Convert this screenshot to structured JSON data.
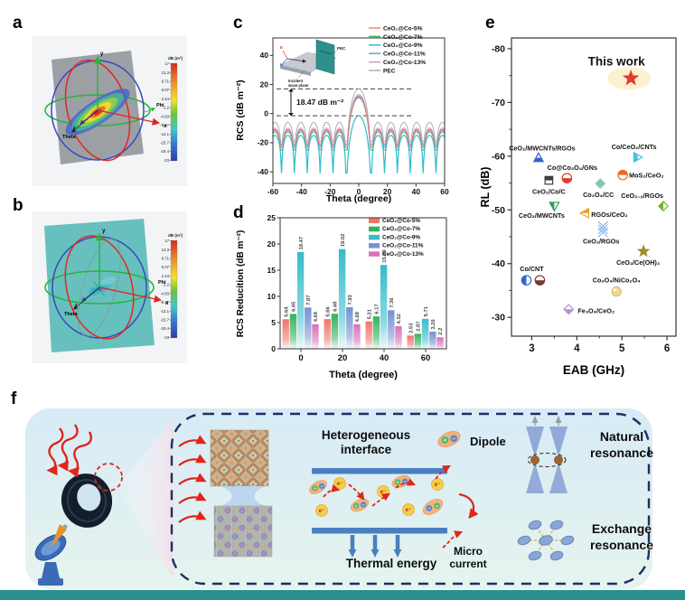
{
  "figure": {
    "panel_labels": {
      "a": "a",
      "b": "b",
      "c": "c",
      "d": "d",
      "e": "e",
      "f": "f"
    }
  },
  "colors": {
    "bottom_strip": "#2a8f8f",
    "schematic_border": "#1d2f63",
    "microwave_red": "#e0251c",
    "interface_bar_blue": "#4a7fc1"
  },
  "radiation_3d": {
    "colorbar_title": "dB (m²)",
    "colorbar_ticks": [
      "17",
      "13.3",
      "9.71",
      "6.07",
      "2.44",
      "-1.2",
      "-4.83",
      "-8.47",
      "-12.1",
      "-15.7",
      "-19.4",
      "-23"
    ],
    "axis_labels": {
      "x": "x",
      "y": "y",
      "z": "z",
      "phi": "Phi",
      "theta": "Theta"
    },
    "plane_color_a": "#96999e",
    "plane_color_b": "#5fbdb9"
  },
  "chart_data": [
    {
      "id": "c",
      "type": "line",
      "xlabel": "Theta (degree)",
      "ylabel": "RCS (dB m⁻²)",
      "xlim": [
        -60,
        60
      ],
      "ylim": [
        -48,
        52
      ],
      "xticks": [
        -60,
        -40,
        -20,
        0,
        20,
        40,
        60
      ],
      "yticks": [
        -40,
        -20,
        0,
        20,
        40
      ],
      "grid": false,
      "legend_position": "top-right",
      "lobe_null_period_deg": 9,
      "annotation": {
        "text": "18.47 dB m⁻²",
        "upper_db": 17,
        "lower_db": -1.47
      },
      "series": [
        {
          "name": "CeO₂@Co-5%",
          "color": "#f0837a",
          "peak": 11.5,
          "side_db": -11.5,
          "null_db": -23
        },
        {
          "name": "CeO₂@Co-7%",
          "color": "#3bb45e",
          "peak": 10.9,
          "side_db": -12.5,
          "null_db": -25
        },
        {
          "name": "CeO₂@Co-9%",
          "color": "#2fbecd",
          "peak": -1.47,
          "side_db": -15,
          "null_db": -41
        },
        {
          "name": "CeO₂@Co-11%",
          "color": "#7b95d6",
          "peak": 12.1,
          "side_db": -11,
          "null_db": -21
        },
        {
          "name": "CeO₂@Co-13%",
          "color": "#d893c6",
          "peak": 13.1,
          "side_db": -10,
          "null_db": -19
        },
        {
          "name": "PEC",
          "color": "#a7aebc",
          "peak": 17.0,
          "side_db": -6,
          "null_db": -23
        }
      ],
      "inset": {
        "absorber": "Absorber",
        "pec": "PEC",
        "incident_line1": "Incident",
        "incident_line2": "wave plane",
        "e_label": "E",
        "h_label": "H"
      }
    },
    {
      "id": "d",
      "type": "bar",
      "xlabel": "Theta (degree)",
      "ylabel": "RCS Reducition (dB m⁻²)",
      "categories": [
        0,
        20,
        40,
        60
      ],
      "ylim": [
        0,
        25
      ],
      "yticks": [
        0,
        5,
        10,
        15,
        20,
        25
      ],
      "legend_position": "top-right",
      "series": [
        {
          "name": "CeO₂@Co-5%",
          "color": "#f0756b",
          "values": [
            5.64,
            5.66,
            5.21,
            2.53
          ]
        },
        {
          "name": "CeO₂@Co-7%",
          "color": "#33b25b",
          "values": [
            6.65,
            6.68,
            6.17,
            2.87
          ]
        },
        {
          "name": "CeO₂@Co-9%",
          "color": "#35bccb",
          "values": [
            18.47,
            19.02,
            15.99,
            5.71
          ]
        },
        {
          "name": "CeO₂@Co-11%",
          "color": "#7591d2",
          "values": [
            7.87,
            7.93,
            7.36,
            3.26
          ]
        },
        {
          "name": "CeO₂@Co-13%",
          "color": "#d970ba",
          "values": [
            4.69,
            4.68,
            4.32,
            2.2
          ]
        }
      ]
    },
    {
      "id": "e",
      "type": "scatter",
      "xlabel": "EAB (GHz)",
      "ylabel": "RL (dB)",
      "xlim": [
        2.55,
        6.2
      ],
      "ylim": [
        -82,
        -26.5
      ],
      "xticks": [
        3,
        4,
        5,
        6
      ],
      "yticks": [
        -80,
        -70,
        -60,
        -50,
        -40,
        -30
      ],
      "points": [
        {
          "label": "This work",
          "eab": 5.2,
          "rl": -74.5,
          "shape": "star",
          "color": "#e23b2e",
          "size": 8.5,
          "highlight": true,
          "lx": -16,
          "ly": -14,
          "anchor": "middle",
          "label_size": 13.5
        },
        {
          "label": "CeO₂/MWCNTs/RGOs",
          "eab": 3.15,
          "rl": -59.7,
          "shape": "tri-up",
          "half": "bottom",
          "color": "#3565c8",
          "lx": 4,
          "ly": -8,
          "anchor": "middle"
        },
        {
          "label": "Co/CeO₂/CNTs",
          "eab": 5.35,
          "rl": -59.8,
          "shape": "tri-right",
          "half": "left",
          "color": "#45c2de",
          "lx": -4,
          "ly": -9,
          "anchor": "middle"
        },
        {
          "label": "Co@Co₃O₄/GNs",
          "eab": 3.78,
          "rl": -55.9,
          "shape": "circle",
          "half": "bottom",
          "color": "#e23b2e",
          "lx": 6,
          "ly": -9,
          "anchor": "middle"
        },
        {
          "label": "CeO₂/Co/C",
          "eab": 3.38,
          "rl": -55.5,
          "shape": "square",
          "half": "top",
          "color": "#3d3d3d",
          "lx": 0,
          "ly": 15,
          "anchor": "middle"
        },
        {
          "label": "MoS₂/CeO₂",
          "eab": 5.02,
          "rl": -56.5,
          "shape": "circle",
          "half": "top",
          "color": "#e96a24",
          "lx": 7,
          "ly": 3,
          "anchor": "start"
        },
        {
          "label": "Co₃O₄/CC",
          "eab": 4.52,
          "rl": -54.9,
          "shape": "diamond",
          "color": "#84c8b5",
          "lx": -2,
          "ly": 15,
          "anchor": "middle"
        },
        {
          "label": "CeO₂₋ₓ/RGOs",
          "eab": 5.92,
          "rl": -50.7,
          "shape": "diamond",
          "half": "left",
          "color": "#74b62c",
          "lx": 0,
          "ly": -9,
          "anchor": "end"
        },
        {
          "label": "CeO₂/MWCNTs",
          "eab": 3.5,
          "rl": -50.7,
          "shape": "tri-down",
          "half": "left",
          "color": "#2f9e5a",
          "lx": -14,
          "ly": 13,
          "anchor": "middle"
        },
        {
          "label": "RGOs/CeO₂",
          "eab": 4.18,
          "rl": -49.4,
          "shape": "tri-left",
          "half": "top",
          "color": "#eaa32b",
          "lx": 7,
          "ly": 4,
          "anchor": "start"
        },
        {
          "label": "CeO₂/RGOs",
          "eab": 4.58,
          "rl": -46.4,
          "shape": "hatch",
          "color": "#85b6e6",
          "lx": -2,
          "ly": 16,
          "anchor": "middle"
        },
        {
          "label": "CeO₂/Ce(OH)₃",
          "eab": 5.48,
          "rl": -42.3,
          "shape": "star",
          "color": "#9e8d23",
          "size": 6.5,
          "lx": -6,
          "ly": 15,
          "anchor": "middle"
        },
        {
          "label": "Co/CNT",
          "eab": 2.88,
          "rl": -36.9,
          "shape": "circle",
          "half": "left",
          "color": "#3565c8",
          "lx": 6,
          "ly": -10,
          "anchor": "middle",
          "second": {
            "eab": 3.18,
            "rl": -36.9,
            "shape": "circle",
            "half": "bottom",
            "color": "#7d3a2d"
          }
        },
        {
          "label": "Co₃O₄/NiCo₂O₄",
          "eab": 4.88,
          "rl": -34.8,
          "shape": "ball",
          "color": "#eed992",
          "lx": 0,
          "ly": -10,
          "anchor": "middle"
        },
        {
          "label": "Fe₃O₄/CeO₂",
          "eab": 3.82,
          "rl": -31.5,
          "shape": "diamond",
          "half": "bottom",
          "color": "#b28ed4",
          "lx": 10,
          "ly": 4,
          "anchor": "start"
        }
      ]
    }
  ],
  "panel_f": {
    "heterogeneous_interface": [
      "Heterogeneous",
      "interface"
    ],
    "dipole_label": "Dipole",
    "thermal_energy": "Thermal energy",
    "micro_current": [
      "Micro",
      "current"
    ],
    "natural_resonance": [
      "Natural",
      "resonance"
    ],
    "exchange_resonance": [
      "Exchange",
      "resonance"
    ],
    "electron": "e⁻",
    "plus": "+",
    "minus": "−"
  }
}
